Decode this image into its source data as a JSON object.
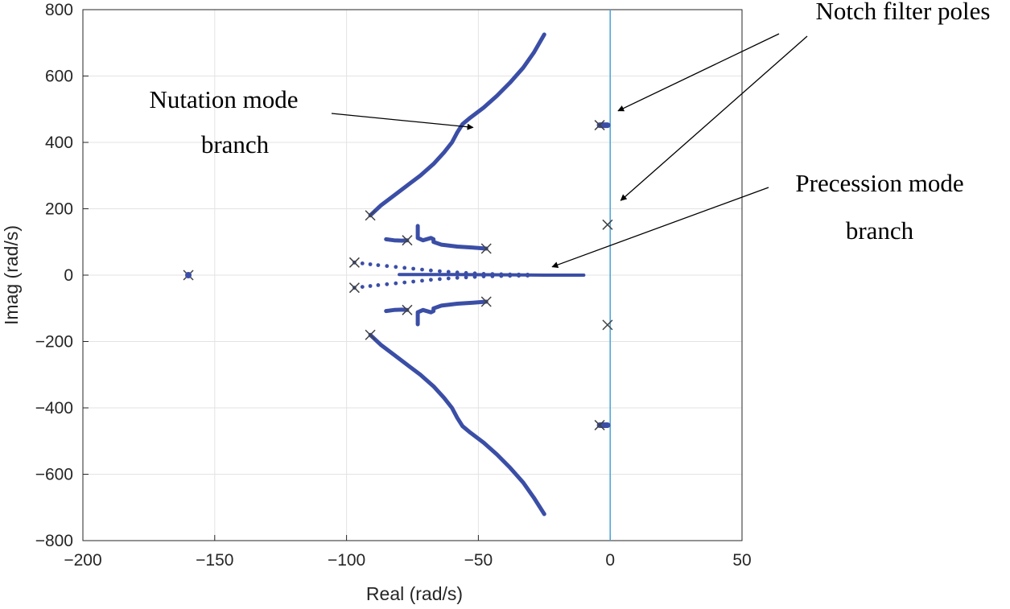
{
  "chart_data": {
    "type": "scatter",
    "title": "",
    "xlabel": "Real (rad/s)",
    "ylabel": "Imag (rad/s)",
    "xlim": [
      -200,
      50
    ],
    "ylim": [
      -800,
      800
    ],
    "xticks": [
      -200,
      -150,
      -100,
      -50,
      0,
      50
    ],
    "yticks": [
      -800,
      -600,
      -400,
      -200,
      0,
      200,
      400,
      600,
      800
    ],
    "grid": true,
    "colors": {
      "locus": "#3b4ea6",
      "pole": "#404040",
      "imag_axis": "#4aa3d6",
      "grid": "#e3e3e3",
      "annotation": "#000000"
    },
    "poles": [
      {
        "x": -160,
        "y": 0
      },
      {
        "x": -91,
        "y": 180
      },
      {
        "x": -91,
        "y": -180
      },
      {
        "x": -97,
        "y": 38
      },
      {
        "x": -97,
        "y": -38
      },
      {
        "x": -77,
        "y": 105
      },
      {
        "x": -77,
        "y": -105
      },
      {
        "x": -47,
        "y": 80
      },
      {
        "x": -47,
        "y": -80
      },
      {
        "x": -4,
        "y": 452
      },
      {
        "x": -4,
        "y": -452
      },
      {
        "x": -1,
        "y": 152
      },
      {
        "x": -1,
        "y": -150
      }
    ],
    "series": [
      {
        "name": "nutation-upper",
        "points": [
          [
            -91,
            180
          ],
          [
            -87,
            210
          ],
          [
            -82,
            240
          ],
          [
            -77,
            270
          ],
          [
            -72,
            300
          ],
          [
            -67,
            335
          ],
          [
            -63,
            370
          ],
          [
            -60,
            400
          ],
          [
            -58,
            430
          ],
          [
            -56,
            455
          ],
          [
            -53,
            475
          ],
          [
            -48,
            505
          ],
          [
            -43,
            540
          ],
          [
            -38,
            580
          ],
          [
            -33,
            625
          ],
          [
            -29,
            670
          ],
          [
            -25,
            725
          ]
        ]
      },
      {
        "name": "nutation-lower",
        "points": [
          [
            -91,
            -180
          ],
          [
            -87,
            -210
          ],
          [
            -82,
            -240
          ],
          [
            -77,
            -270
          ],
          [
            -72,
            -300
          ],
          [
            -67,
            -335
          ],
          [
            -63,
            -370
          ],
          [
            -60,
            -400
          ],
          [
            -58,
            -430
          ],
          [
            -56,
            -455
          ],
          [
            -53,
            -475
          ],
          [
            -48,
            -505
          ],
          [
            -43,
            -540
          ],
          [
            -38,
            -580
          ],
          [
            -33,
            -625
          ],
          [
            -29,
            -670
          ],
          [
            -25,
            -720
          ]
        ]
      },
      {
        "name": "branch-upper",
        "points": [
          [
            -47,
            80
          ],
          [
            -52,
            83
          ],
          [
            -58,
            86
          ],
          [
            -64,
            92
          ],
          [
            -67,
            100
          ],
          [
            -67,
            108
          ],
          [
            -68,
            112
          ],
          [
            -71,
            105
          ],
          [
            -73,
            112
          ],
          [
            -73,
            125
          ],
          [
            -73,
            148
          ]
        ]
      },
      {
        "name": "branch-lower",
        "points": [
          [
            -47,
            -80
          ],
          [
            -52,
            -83
          ],
          [
            -58,
            -86
          ],
          [
            -64,
            -92
          ],
          [
            -67,
            -100
          ],
          [
            -67,
            -108
          ],
          [
            -68,
            -112
          ],
          [
            -71,
            -105
          ],
          [
            -73,
            -112
          ],
          [
            -73,
            -125
          ],
          [
            -73,
            -148
          ]
        ]
      },
      {
        "name": "short-upper",
        "points": [
          [
            -85,
            108
          ],
          [
            -82,
            105
          ],
          [
            -79,
            104
          ],
          [
            -77,
            105
          ]
        ]
      },
      {
        "name": "short-lower",
        "points": [
          [
            -85,
            -108
          ],
          [
            -82,
            -105
          ],
          [
            -79,
            -104
          ],
          [
            -77,
            -105
          ]
        ]
      },
      {
        "name": "precession-axis",
        "points": [
          [
            -80,
            2
          ],
          [
            -60,
            2
          ],
          [
            -40,
            1
          ],
          [
            -25,
            0
          ],
          [
            -10,
            0
          ]
        ]
      },
      {
        "name": "notch-upper",
        "points": [
          [
            -4,
            452
          ],
          [
            -1,
            452
          ]
        ]
      },
      {
        "name": "notch-lower",
        "points": [
          [
            -4,
            -452
          ],
          [
            -1,
            -452
          ]
        ]
      }
    ],
    "dotted_series": [
      {
        "name": "precession-upper",
        "points": [
          [
            -97,
            38
          ],
          [
            -88,
            30
          ],
          [
            -78,
            22
          ],
          [
            -68,
            14
          ],
          [
            -58,
            8
          ],
          [
            -48,
            4
          ],
          [
            -38,
            2
          ],
          [
            -28,
            1
          ]
        ]
      },
      {
        "name": "precession-lower",
        "points": [
          [
            -97,
            -38
          ],
          [
            -88,
            -30
          ],
          [
            -78,
            -22
          ],
          [
            -68,
            -14
          ],
          [
            -58,
            -8
          ],
          [
            -48,
            -4
          ],
          [
            -38,
            -2
          ],
          [
            -28,
            -1
          ]
        ]
      }
    ],
    "annotations": [
      {
        "name": "nutation-annotation",
        "lines": [
          "Nutation mode",
          "branch"
        ],
        "arrows_to": [
          [
            -52,
            445
          ]
        ]
      },
      {
        "name": "notch-annotation",
        "lines": [
          "Notch filter poles"
        ],
        "arrows_to": [
          [
            3,
            495
          ],
          [
            4,
            225
          ]
        ]
      },
      {
        "name": "precession-annotation",
        "lines": [
          "Precession mode",
          "branch"
        ],
        "arrows_to": [
          [
            -22,
            25
          ]
        ]
      }
    ]
  }
}
